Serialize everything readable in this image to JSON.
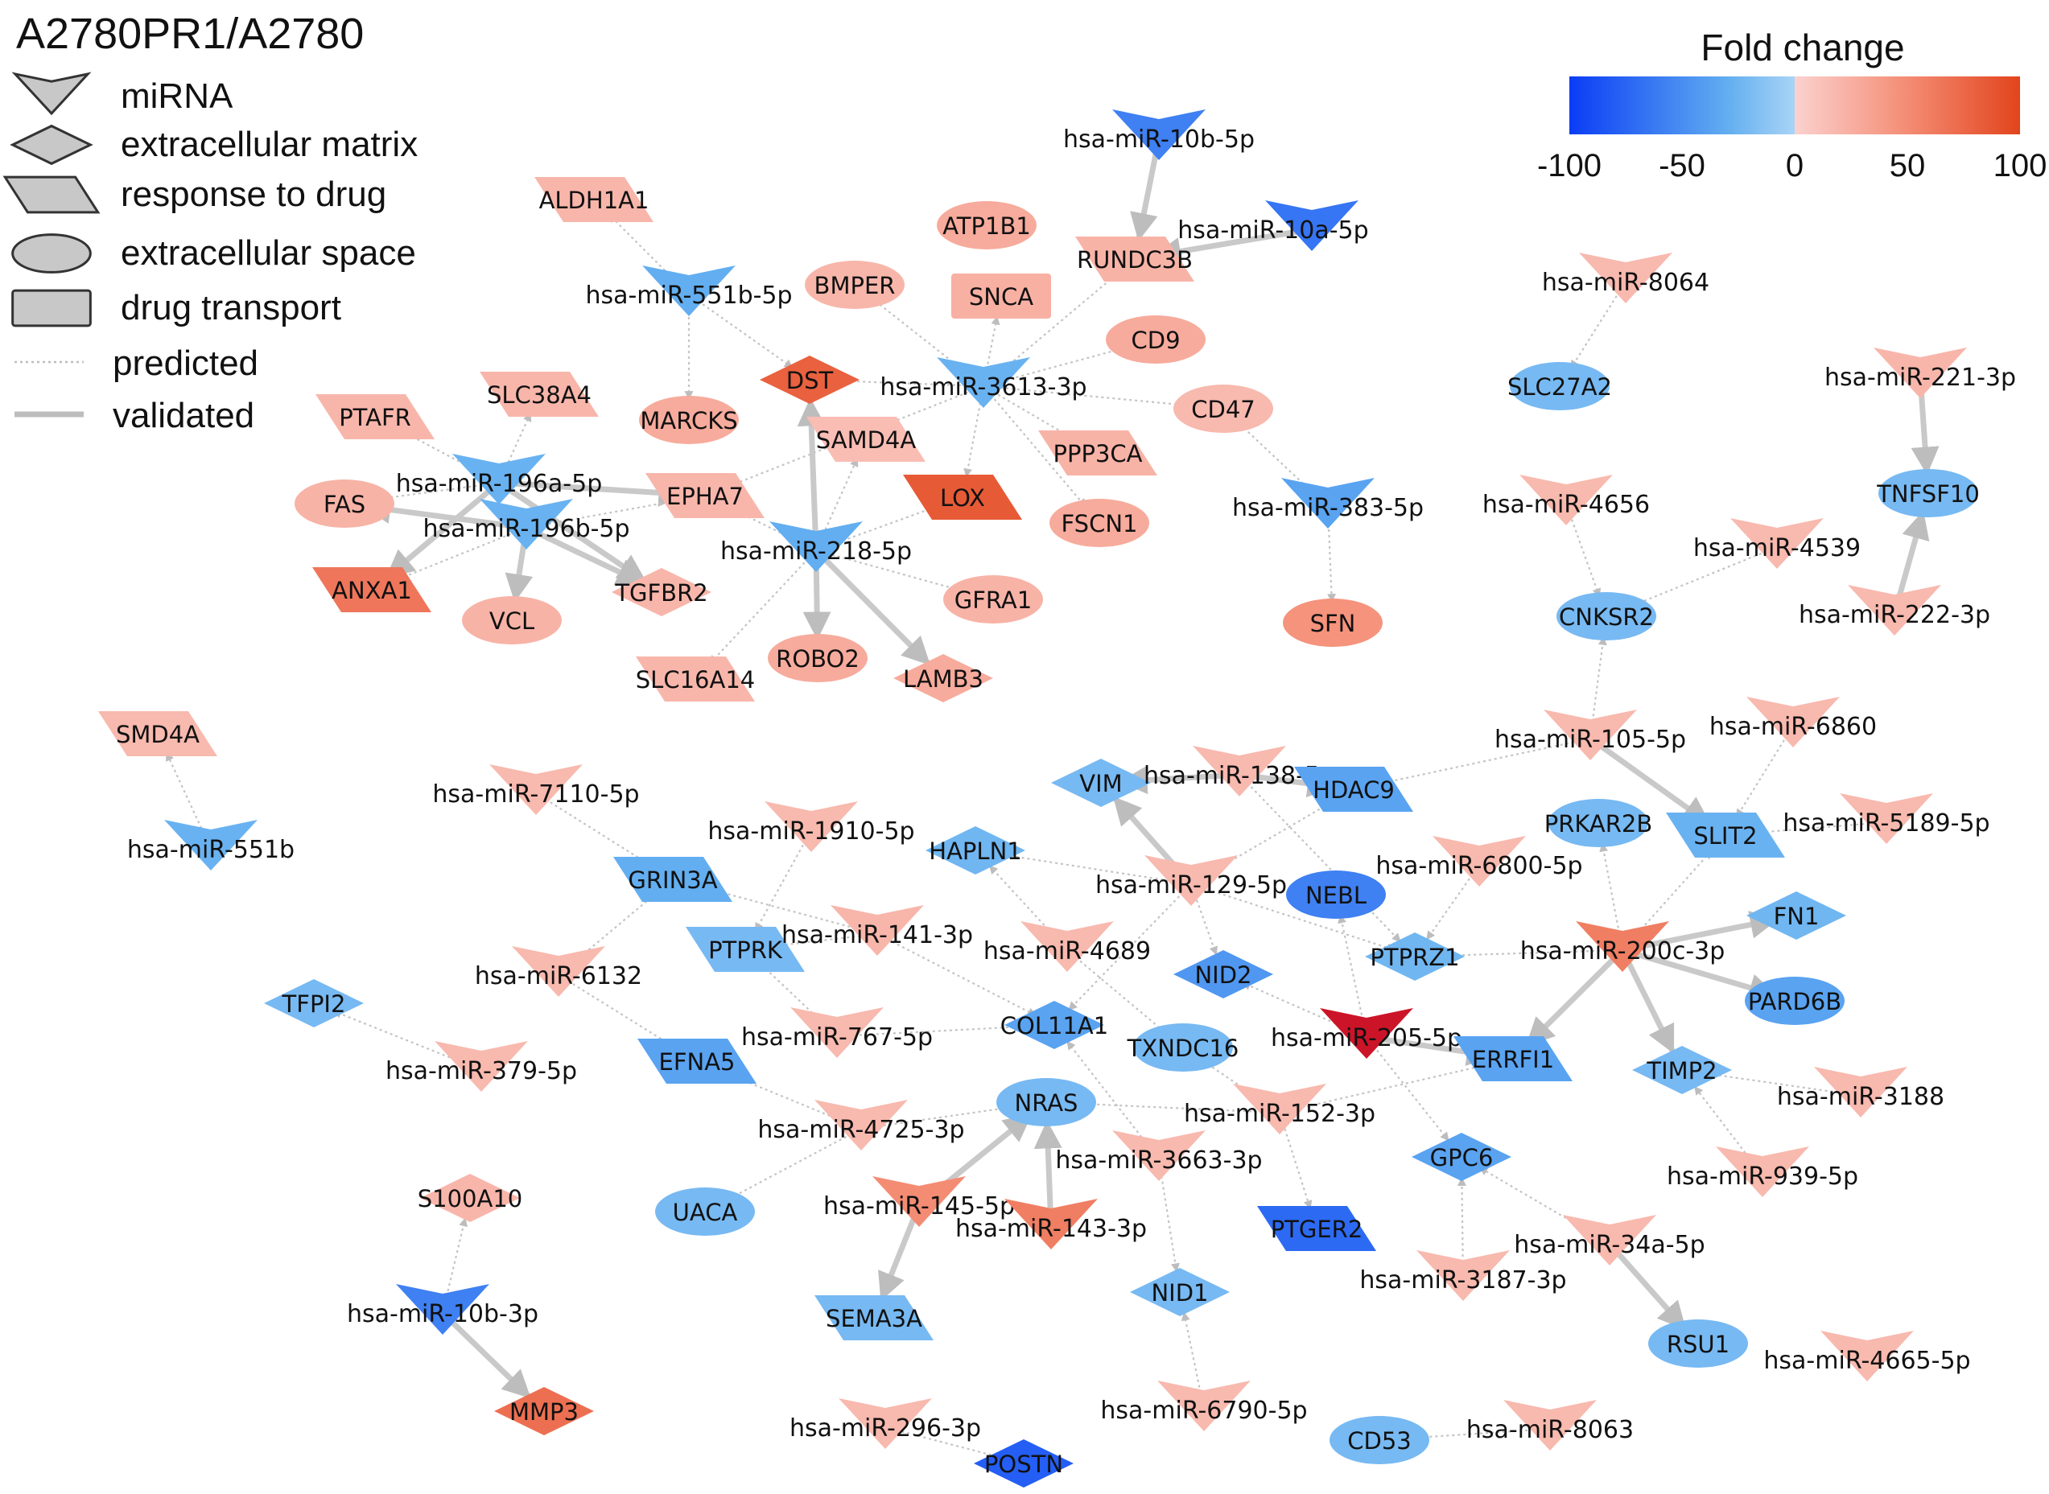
{
  "title": "A2780PR1/A2780",
  "shape_legend": [
    {
      "shape": "v",
      "label": "miRNA"
    },
    {
      "shape": "diamond",
      "label": "extracellular matrix"
    },
    {
      "shape": "para",
      "label": "response to drug"
    },
    {
      "shape": "ellipse",
      "label": "extracellular space"
    },
    {
      "shape": "rect",
      "label": "drug transport"
    }
  ],
  "edge_legend": [
    {
      "style": "dotted",
      "label": "predicted"
    },
    {
      "style": "solid",
      "label": "validated"
    }
  ],
  "colorbar": {
    "title": "Fold change",
    "min": -100,
    "max": 100,
    "ticks": [
      "-100",
      "-50",
      "0",
      "50",
      "100"
    ],
    "colors": [
      "#0a3cf5",
      "#62aef0",
      "#a9d4f6",
      "#fbd2cf",
      "#f48c74",
      "#e2441c"
    ]
  },
  "nodes": [
    {
      "id": "miR-10b-5p",
      "label": "hsa-miR-10b-5p",
      "shape": "v",
      "fc": -70
    },
    {
      "id": "miR-10a-5p",
      "label": "hsa-miR-10a-5p",
      "shape": "v",
      "fc": -75
    },
    {
      "id": "ALDH1A1",
      "label": "ALDH1A1",
      "shape": "para",
      "fc": 20
    },
    {
      "id": "ATP1B1",
      "label": "ATP1B1",
      "shape": "ellipse",
      "fc": 28
    },
    {
      "id": "RUNDC3B",
      "label": "RUNDC3B",
      "shape": "para",
      "fc": 22
    },
    {
      "id": "miR-551b-5p",
      "label": "hsa-miR-551b-5p",
      "shape": "v",
      "fc": -50
    },
    {
      "id": "BMPER",
      "label": "BMPER",
      "shape": "ellipse",
      "fc": 20
    },
    {
      "id": "SNCA",
      "label": "SNCA",
      "shape": "rect",
      "fc": 24
    },
    {
      "id": "CD9",
      "label": "CD9",
      "shape": "ellipse",
      "fc": 28
    },
    {
      "id": "DST",
      "label": "DST",
      "shape": "diamond",
      "fc": 80
    },
    {
      "id": "miR-3613-3p",
      "label": "hsa-miR-3613-3p",
      "shape": "v",
      "fc": -45
    },
    {
      "id": "CD47",
      "label": "CD47",
      "shape": "ellipse",
      "fc": 18
    },
    {
      "id": "MARCKS",
      "label": "MARCKS",
      "shape": "ellipse",
      "fc": 28
    },
    {
      "id": "SAMD4A",
      "label": "SAMD4A",
      "shape": "para",
      "fc": 15
    },
    {
      "id": "PPP3CA",
      "label": "PPP3CA",
      "shape": "para",
      "fc": 22
    },
    {
      "id": "PTAFR",
      "label": "PTAFR",
      "shape": "para",
      "fc": 20
    },
    {
      "id": "SLC38A4",
      "label": "SLC38A4",
      "shape": "para",
      "fc": 20
    },
    {
      "id": "miR-196a-5p",
      "label": "hsa-miR-196a-5p",
      "shape": "v",
      "fc": -45
    },
    {
      "id": "FAS",
      "label": "FAS",
      "shape": "ellipse",
      "fc": 22
    },
    {
      "id": "EPHA7",
      "label": "EPHA7",
      "shape": "para",
      "fc": 20
    },
    {
      "id": "LOX",
      "label": "LOX",
      "shape": "para",
      "fc": 85
    },
    {
      "id": "FSCN1",
      "label": "FSCN1",
      "shape": "ellipse",
      "fc": 28
    },
    {
      "id": "miR-196b-5p",
      "label": "hsa-miR-196b-5p",
      "shape": "v",
      "fc": -45
    },
    {
      "id": "miR-218-5p",
      "label": "hsa-miR-218-5p",
      "shape": "v",
      "fc": -50
    },
    {
      "id": "ANXA1",
      "label": "ANXA1",
      "shape": "para",
      "fc": 65
    },
    {
      "id": "VCL",
      "label": "VCL",
      "shape": "ellipse",
      "fc": 22
    },
    {
      "id": "TGFBR2",
      "label": "TGFBR2",
      "shape": "diamond",
      "fc": 20
    },
    {
      "id": "GFRA1",
      "label": "GFRA1",
      "shape": "ellipse",
      "fc": 22
    },
    {
      "id": "miR-383-5p",
      "label": "hsa-miR-383-5p",
      "shape": "v",
      "fc": -55
    },
    {
      "id": "SFN",
      "label": "SFN",
      "shape": "ellipse",
      "fc": 45
    },
    {
      "id": "ROBO2",
      "label": "ROBO2",
      "shape": "ellipse",
      "fc": 28
    },
    {
      "id": "SLC16A14",
      "label": "SLC16A14",
      "shape": "para",
      "fc": 20
    },
    {
      "id": "LAMB3",
      "label": "LAMB3",
      "shape": "diamond",
      "fc": 28
    },
    {
      "id": "miR-8064",
      "label": "hsa-miR-8064",
      "shape": "v",
      "fc": 18
    },
    {
      "id": "SLC27A2",
      "label": "SLC27A2",
      "shape": "ellipse",
      "fc": -35
    },
    {
      "id": "miR-221-3p",
      "label": "hsa-miR-221-3p",
      "shape": "v",
      "fc": 20
    },
    {
      "id": "TNFSF10",
      "label": "TNFSF10",
      "shape": "ellipse",
      "fc": -35
    },
    {
      "id": "miR-4656",
      "label": "hsa-miR-4656",
      "shape": "v",
      "fc": 18
    },
    {
      "id": "miR-4539",
      "label": "hsa-miR-4539",
      "shape": "v",
      "fc": 18
    },
    {
      "id": "CNKSR2",
      "label": "CNKSR2",
      "shape": "ellipse",
      "fc": -35
    },
    {
      "id": "miR-222-3p",
      "label": "hsa-miR-222-3p",
      "shape": "v",
      "fc": 18
    },
    {
      "id": "SMD4A",
      "label": "SMD4A",
      "shape": "para",
      "fc": 18
    },
    {
      "id": "miR-551b",
      "label": "hsa-miR-551b",
      "shape": "v",
      "fc": -45
    },
    {
      "id": "miR-105-5p",
      "label": "hsa-miR-105-5p",
      "shape": "v",
      "fc": 18
    },
    {
      "id": "miR-6860",
      "label": "hsa-miR-6860",
      "shape": "v",
      "fc": 18
    },
    {
      "id": "VIM",
      "label": "VIM",
      "shape": "diamond",
      "fc": -35
    },
    {
      "id": "miR-138-5p",
      "label": "hsa-miR-138-5p",
      "shape": "v",
      "fc": 18
    },
    {
      "id": "HDAC9",
      "label": "HDAC9",
      "shape": "para",
      "fc": -55
    },
    {
      "id": "miR-7110-5p",
      "label": "hsa-miR-7110-5p",
      "shape": "v",
      "fc": 18
    },
    {
      "id": "miR-1910-5p",
      "label": "hsa-miR-1910-5p",
      "shape": "v",
      "fc": 18
    },
    {
      "id": "HAPLN1",
      "label": "HAPLN1",
      "shape": "diamond",
      "fc": -40
    },
    {
      "id": "PRKAR2B",
      "label": "PRKAR2B",
      "shape": "ellipse",
      "fc": -35
    },
    {
      "id": "SLIT2",
      "label": "SLIT2",
      "shape": "para",
      "fc": -45
    },
    {
      "id": "miR-5189-5p",
      "label": "hsa-miR-5189-5p",
      "shape": "v",
      "fc": 18
    },
    {
      "id": "GRIN3A",
      "label": "GRIN3A",
      "shape": "para",
      "fc": -50
    },
    {
      "id": "miR-129-5p",
      "label": "hsa-miR-129-5p",
      "shape": "v",
      "fc": 18
    },
    {
      "id": "NEBL",
      "label": "NEBL",
      "shape": "ellipse",
      "fc": -70
    },
    {
      "id": "miR-6800-5p",
      "label": "hsa-miR-6800-5p",
      "shape": "v",
      "fc": 18
    },
    {
      "id": "FN1",
      "label": "FN1",
      "shape": "diamond",
      "fc": -40
    },
    {
      "id": "PTPRK",
      "label": "PTPRK",
      "shape": "para",
      "fc": -35
    },
    {
      "id": "miR-141-3p",
      "label": "hsa-miR-141-3p",
      "shape": "v",
      "fc": 20
    },
    {
      "id": "miR-4689",
      "label": "hsa-miR-4689",
      "shape": "v",
      "fc": 18
    },
    {
      "id": "PTPRZ1",
      "label": "PTPRZ1",
      "shape": "diamond",
      "fc": -40
    },
    {
      "id": "miR-200c-3p",
      "label": "hsa-miR-200c-3p",
      "shape": "v",
      "fc": 60
    },
    {
      "id": "miR-6132",
      "label": "hsa-miR-6132",
      "shape": "v",
      "fc": 18
    },
    {
      "id": "NID2",
      "label": "NID2",
      "shape": "diamond",
      "fc": -60
    },
    {
      "id": "PARD6B",
      "label": "PARD6B",
      "shape": "ellipse",
      "fc": -55
    },
    {
      "id": "TFPI2",
      "label": "TFPI2",
      "shape": "diamond",
      "fc": -35
    },
    {
      "id": "COL11A1",
      "label": "COL11A1",
      "shape": "diamond",
      "fc": -55
    },
    {
      "id": "miR-205-5p",
      "label": "hsa-miR-205-5p",
      "shape": "v",
      "fc": 100
    },
    {
      "id": "miR-767-5p",
      "label": "hsa-miR-767-5p",
      "shape": "v",
      "fc": 18
    },
    {
      "id": "EFNA5",
      "label": "EFNA5",
      "shape": "para",
      "fc": -55
    },
    {
      "id": "TXNDC16",
      "label": "TXNDC16",
      "shape": "ellipse",
      "fc": -35
    },
    {
      "id": "ERRFI1",
      "label": "ERRFI1",
      "shape": "para",
      "fc": -55
    },
    {
      "id": "TIMP2",
      "label": "TIMP2",
      "shape": "diamond",
      "fc": -35
    },
    {
      "id": "miR-379-5p",
      "label": "hsa-miR-379-5p",
      "shape": "v",
      "fc": 18
    },
    {
      "id": "miR-3188",
      "label": "hsa-miR-3188",
      "shape": "v",
      "fc": 18
    },
    {
      "id": "NRAS",
      "label": "NRAS",
      "shape": "ellipse",
      "fc": -35
    },
    {
      "id": "miR-152-3p",
      "label": "hsa-miR-152-3p",
      "shape": "v",
      "fc": 18
    },
    {
      "id": "miR-4725-3p",
      "label": "hsa-miR-4725-3p",
      "shape": "v",
      "fc": 18
    },
    {
      "id": "miR-3663-3p",
      "label": "hsa-miR-3663-3p",
      "shape": "v",
      "fc": 18
    },
    {
      "id": "GPC6",
      "label": "GPC6",
      "shape": "diamond",
      "fc": -55
    },
    {
      "id": "miR-939-5p",
      "label": "hsa-miR-939-5p",
      "shape": "v",
      "fc": 18
    },
    {
      "id": "S100A10",
      "label": "S100A10",
      "shape": "diamond",
      "fc": 20
    },
    {
      "id": "UACA",
      "label": "UACA",
      "shape": "ellipse",
      "fc": -35
    },
    {
      "id": "miR-145-5p",
      "label": "hsa-miR-145-5p",
      "shape": "v",
      "fc": 50
    },
    {
      "id": "miR-143-3p",
      "label": "hsa-miR-143-3p",
      "shape": "v",
      "fc": 60
    },
    {
      "id": "PTGER2",
      "label": "PTGER2",
      "shape": "para",
      "fc": -80
    },
    {
      "id": "miR-34a-5p",
      "label": "hsa-miR-34a-5p",
      "shape": "v",
      "fc": 18
    },
    {
      "id": "miR-10b-3p",
      "label": "hsa-miR-10b-3p",
      "shape": "v",
      "fc": -70
    },
    {
      "id": "SEMA3A",
      "label": "SEMA3A",
      "shape": "para",
      "fc": -35
    },
    {
      "id": "NID1",
      "label": "NID1",
      "shape": "diamond",
      "fc": -35
    },
    {
      "id": "miR-3187-3p",
      "label": "hsa-miR-3187-3p",
      "shape": "v",
      "fc": 18
    },
    {
      "id": "RSU1",
      "label": "RSU1",
      "shape": "ellipse",
      "fc": -35
    },
    {
      "id": "miR-4665-5p",
      "label": "hsa-miR-4665-5p",
      "shape": "v",
      "fc": 18
    },
    {
      "id": "MMP3",
      "label": "MMP3",
      "shape": "diamond",
      "fc": 70
    },
    {
      "id": "miR-6790-5p",
      "label": "hsa-miR-6790-5p",
      "shape": "v",
      "fc": 18
    },
    {
      "id": "miR-296-3p",
      "label": "hsa-miR-296-3p",
      "shape": "v",
      "fc": 18
    },
    {
      "id": "POSTN",
      "label": "POSTN",
      "shape": "diamond",
      "fc": -85
    },
    {
      "id": "CD53",
      "label": "CD53",
      "shape": "ellipse",
      "fc": -35
    },
    {
      "id": "miR-8063",
      "label": "hsa-miR-8063",
      "shape": "v",
      "fc": 18
    }
  ],
  "edges": [
    {
      "s": "miR-10b-5p",
      "t": "RUNDC3B",
      "type": "validated"
    },
    {
      "s": "miR-10a-5p",
      "t": "RUNDC3B",
      "type": "validated"
    },
    {
      "s": "miR-551b-5p",
      "t": "ALDH1A1",
      "type": "predicted"
    },
    {
      "s": "miR-551b-5p",
      "t": "DST",
      "type": "predicted"
    },
    {
      "s": "miR-551b-5p",
      "t": "MARCKS",
      "type": "predicted"
    },
    {
      "s": "miR-3613-3p",
      "t": "BMPER",
      "type": "predicted"
    },
    {
      "s": "miR-3613-3p",
      "t": "SNCA",
      "type": "predicted"
    },
    {
      "s": "miR-3613-3p",
      "t": "RUNDC3B",
      "type": "predicted"
    },
    {
      "s": "miR-3613-3p",
      "t": "CD9",
      "type": "predicted"
    },
    {
      "s": "miR-3613-3p",
      "t": "CD47",
      "type": "predicted"
    },
    {
      "s": "miR-3613-3p",
      "t": "PPP3CA",
      "type": "predicted"
    },
    {
      "s": "miR-3613-3p",
      "t": "FSCN1",
      "type": "predicted"
    },
    {
      "s": "miR-3613-3p",
      "t": "LOX",
      "type": "predicted"
    },
    {
      "s": "miR-3613-3p",
      "t": "DST",
      "type": "predicted"
    },
    {
      "s": "miR-3613-3p",
      "t": "EPHA7",
      "type": "predicted"
    },
    {
      "s": "miR-196a-5p",
      "t": "PTAFR",
      "type": "predicted"
    },
    {
      "s": "miR-196a-5p",
      "t": "SLC38A4",
      "type": "predicted"
    },
    {
      "s": "miR-196a-5p",
      "t": "FAS",
      "type": "predicted"
    },
    {
      "s": "miR-196a-5p",
      "t": "EPHA7",
      "type": "validated"
    },
    {
      "s": "miR-196a-5p",
      "t": "ANXA1",
      "type": "validated"
    },
    {
      "s": "miR-196a-5p",
      "t": "TGFBR2",
      "type": "validated"
    },
    {
      "s": "miR-196b-5p",
      "t": "FAS",
      "type": "validated"
    },
    {
      "s": "miR-196b-5p",
      "t": "ANXA1",
      "type": "predicted"
    },
    {
      "s": "miR-196b-5p",
      "t": "VCL",
      "type": "validated"
    },
    {
      "s": "miR-196b-5p",
      "t": "TGFBR2",
      "type": "validated"
    },
    {
      "s": "miR-196b-5p",
      "t": "EPHA7",
      "type": "predicted"
    },
    {
      "s": "miR-218-5p",
      "t": "DST",
      "type": "validated"
    },
    {
      "s": "miR-218-5p",
      "t": "SAMD4A",
      "type": "predicted"
    },
    {
      "s": "miR-218-5p",
      "t": "LOX",
      "type": "predicted"
    },
    {
      "s": "miR-218-5p",
      "t": "GFRA1",
      "type": "predicted"
    },
    {
      "s": "miR-218-5p",
      "t": "ROBO2",
      "type": "validated"
    },
    {
      "s": "miR-218-5p",
      "t": "LAMB3",
      "type": "validated"
    },
    {
      "s": "miR-218-5p",
      "t": "SLC16A14",
      "type": "predicted"
    },
    {
      "s": "miR-218-5p",
      "t": "EPHA7",
      "type": "predicted"
    },
    {
      "s": "miR-383-5p",
      "t": "CD47",
      "type": "predicted"
    },
    {
      "s": "miR-383-5p",
      "t": "SFN",
      "type": "predicted"
    },
    {
      "s": "miR-8064",
      "t": "SLC27A2",
      "type": "predicted"
    },
    {
      "s": "miR-221-3p",
      "t": "TNFSF10",
      "type": "validated"
    },
    {
      "s": "miR-222-3p",
      "t": "TNFSF10",
      "type": "validated"
    },
    {
      "s": "miR-4656",
      "t": "CNKSR2",
      "type": "predicted"
    },
    {
      "s": "miR-4539",
      "t": "CNKSR2",
      "type": "predicted"
    },
    {
      "s": "miR-105-5p",
      "t": "CNKSR2",
      "type": "predicted"
    },
    {
      "s": "miR-105-5p",
      "t": "HDAC9",
      "type": "predicted"
    },
    {
      "s": "miR-105-5p",
      "t": "SLIT2",
      "type": "validated"
    },
    {
      "s": "miR-6860",
      "t": "SLIT2",
      "type": "predicted"
    },
    {
      "s": "miR-5189-5p",
      "t": "SLIT2",
      "type": "predicted"
    },
    {
      "s": "miR-551b",
      "t": "SMD4A",
      "type": "predicted"
    },
    {
      "s": "miR-138-5p",
      "t": "VIM",
      "type": "validated"
    },
    {
      "s": "miR-138-5p",
      "t": "HDAC9",
      "type": "validated"
    },
    {
      "s": "miR-138-5p",
      "t": "PTPRZ1",
      "type": "predicted"
    },
    {
      "s": "miR-129-5p",
      "t": "VIM",
      "type": "validated"
    },
    {
      "s": "miR-129-5p",
      "t": "HDAC9",
      "type": "predicted"
    },
    {
      "s": "miR-129-5p",
      "t": "HAPLN1",
      "type": "predicted"
    },
    {
      "s": "miR-129-5p",
      "t": "NID2",
      "type": "predicted"
    },
    {
      "s": "miR-129-5p",
      "t": "COL11A1",
      "type": "predicted"
    },
    {
      "s": "miR-129-5p",
      "t": "PTPRZ1",
      "type": "predicted"
    },
    {
      "s": "miR-7110-5p",
      "t": "GRIN3A",
      "type": "predicted"
    },
    {
      "s": "miR-1910-5p",
      "t": "PTPRK",
      "type": "predicted"
    },
    {
      "s": "miR-141-3p",
      "t": "GRIN3A",
      "type": "predicted"
    },
    {
      "s": "miR-141-3p",
      "t": "PTPRK",
      "type": "predicted"
    },
    {
      "s": "miR-141-3p",
      "t": "COL11A1",
      "type": "predicted"
    },
    {
      "s": "miR-4689",
      "t": "HAPLN1",
      "type": "predicted"
    },
    {
      "s": "miR-4689",
      "t": "TXNDC16",
      "type": "predicted"
    },
    {
      "s": "miR-6132",
      "t": "GRIN3A",
      "type": "predicted"
    },
    {
      "s": "miR-6132",
      "t": "EFNA5",
      "type": "predicted"
    },
    {
      "s": "miR-379-5p",
      "t": "TFPI2",
      "type": "predicted"
    },
    {
      "s": "miR-767-5p",
      "t": "PTPRK",
      "type": "predicted"
    },
    {
      "s": "miR-767-5p",
      "t": "COL11A1",
      "type": "predicted"
    },
    {
      "s": "miR-4725-3p",
      "t": "EFNA5",
      "type": "predicted"
    },
    {
      "s": "miR-4725-3p",
      "t": "UACA",
      "type": "predicted"
    },
    {
      "s": "miR-4725-3p",
      "t": "NRAS",
      "type": "predicted"
    },
    {
      "s": "miR-205-5p",
      "t": "NID2",
      "type": "predicted"
    },
    {
      "s": "miR-205-5p",
      "t": "NEBL",
      "type": "predicted"
    },
    {
      "s": "miR-205-5p",
      "t": "ERRFI1",
      "type": "validated"
    },
    {
      "s": "miR-205-5p",
      "t": "GPC6",
      "type": "predicted"
    },
    {
      "s": "miR-6800-5p",
      "t": "PTPRZ1",
      "type": "predicted"
    },
    {
      "s": "miR-200c-3p",
      "t": "PTPRZ1",
      "type": "predicted"
    },
    {
      "s": "miR-200c-3p",
      "t": "PRKAR2B",
      "type": "predicted"
    },
    {
      "s": "miR-200c-3p",
      "t": "SLIT2",
      "type": "predicted"
    },
    {
      "s": "miR-200c-3p",
      "t": "FN1",
      "type": "validated"
    },
    {
      "s": "miR-200c-3p",
      "t": "PARD6B",
      "type": "validated"
    },
    {
      "s": "miR-200c-3p",
      "t": "ERRFI1",
      "type": "validated"
    },
    {
      "s": "miR-200c-3p",
      "t": "TIMP2",
      "type": "validated"
    },
    {
      "s": "miR-3188",
      "t": "TIMP2",
      "type": "predicted"
    },
    {
      "s": "miR-939-5p",
      "t": "TIMP2",
      "type": "predicted"
    },
    {
      "s": "miR-152-3p",
      "t": "NRAS",
      "type": "predicted"
    },
    {
      "s": "miR-152-3p",
      "t": "ERRFI1",
      "type": "predicted"
    },
    {
      "s": "miR-152-3p",
      "t": "PTGER2",
      "type": "predicted"
    },
    {
      "s": "miR-152-3p",
      "t": "TXNDC16",
      "type": "predicted"
    },
    {
      "s": "miR-3663-3p",
      "t": "COL11A1",
      "type": "predicted"
    },
    {
      "s": "miR-3663-3p",
      "t": "NID1",
      "type": "predicted"
    },
    {
      "s": "miR-145-5p",
      "t": "NRAS",
      "type": "validated"
    },
    {
      "s": "miR-145-5p",
      "t": "SEMA3A",
      "type": "validated"
    },
    {
      "s": "miR-143-3p",
      "t": "NRAS",
      "type": "validated"
    },
    {
      "s": "miR-34a-5p",
      "t": "GPC6",
      "type": "predicted"
    },
    {
      "s": "miR-34a-5p",
      "t": "RSU1",
      "type": "validated"
    },
    {
      "s": "miR-3187-3p",
      "t": "GPC6",
      "type": "predicted"
    },
    {
      "s": "miR-10b-3p",
      "t": "S100A10",
      "type": "predicted"
    },
    {
      "s": "miR-10b-3p",
      "t": "MMP3",
      "type": "validated"
    },
    {
      "s": "miR-6790-5p",
      "t": "NID1",
      "type": "predicted"
    },
    {
      "s": "miR-296-3p",
      "t": "POSTN",
      "type": "predicted"
    },
    {
      "s": "miR-8063",
      "t": "CD53",
      "type": "predicted"
    }
  ]
}
